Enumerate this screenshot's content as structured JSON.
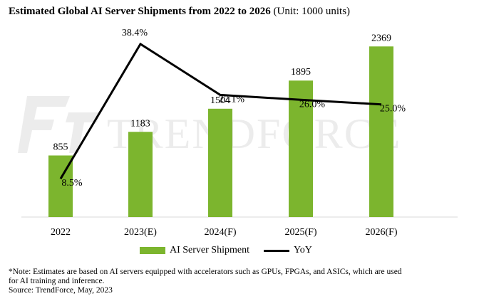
{
  "title": {
    "main": "Estimated Global AI Server Shipments from 2022 to 2026",
    "unit": "(Unit: 1000 units)"
  },
  "watermark": "TRENDFORCE",
  "colors": {
    "bar": "#7cb52e",
    "line": "#000000",
    "axis": "#d9d9d9",
    "watermark": "#ececec"
  },
  "chart_data": {
    "type": "bar",
    "title": "Estimated Global AI Server Shipments from 2022 to 2026 (Unit: 1000 units)",
    "categories": [
      "2022",
      "2023(E)",
      "2024(F)",
      "2025(F)",
      "2026(F)"
    ],
    "series": [
      {
        "name": "AI Server Shipment",
        "type": "bar",
        "values": [
          855,
          1183,
          1504,
          1895,
          2369
        ],
        "labels": [
          "855",
          "1183",
          "1504",
          "1895",
          "2369"
        ]
      },
      {
        "name": "YoY",
        "type": "line",
        "values": [
          8.5,
          38.4,
          27.1,
          26.0,
          25.0
        ],
        "labels": [
          "8.5%",
          "38.4%",
          "27.1%",
          "26.0%",
          "25.0%"
        ]
      }
    ],
    "ylim_bar": [
      0,
      2500
    ],
    "ylim_line": [
      0,
      45
    ],
    "xlabel": "",
    "ylabel": "",
    "legend_position": "bottom"
  },
  "legend": {
    "bar": "AI Server Shipment",
    "line": "YoY"
  },
  "note": {
    "line1": "*Note: Estimates are based on AI servers equipped with accelerators such as GPUs, FPGAs, and ASICs, which are used",
    "line2": "for AI training and inference.",
    "source": "Source: TrendForce, May, 2023"
  }
}
